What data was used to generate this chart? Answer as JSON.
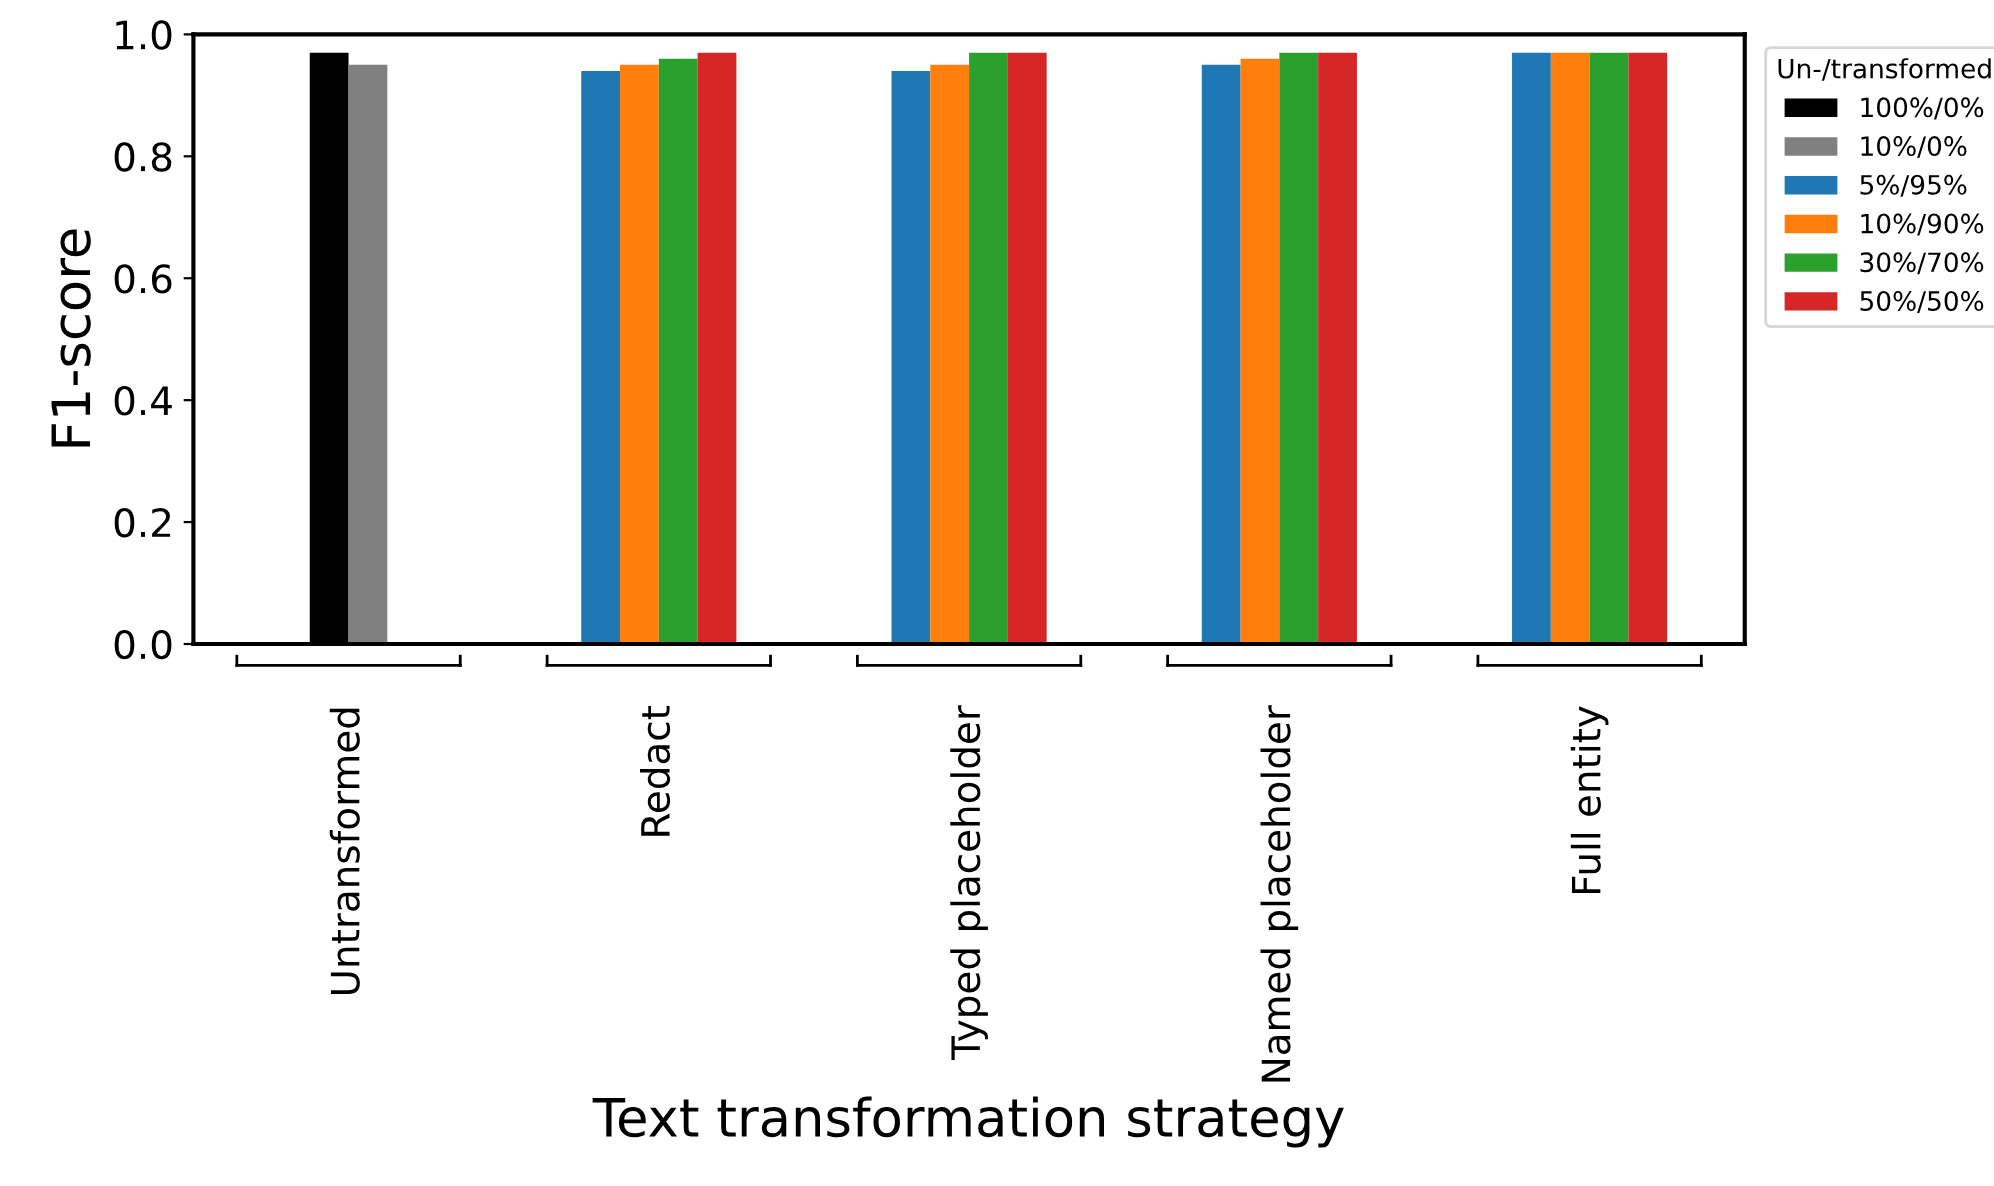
{
  "chart_data": {
    "type": "bar",
    "xlabel": "Text transformation strategy",
    "ylabel": "F1-score",
    "legend_title": "Un-/transformed",
    "categories": [
      "Untransformed",
      "Redact",
      "Typed placeholder",
      "Named placeholder",
      "Full entity"
    ],
    "series": [
      {
        "name": "100%/0%",
        "color": "#000000",
        "values": [
          0.97,
          null,
          null,
          null,
          null
        ]
      },
      {
        "name": "10%/0%",
        "color": "#808080",
        "values": [
          0.95,
          null,
          null,
          null,
          null
        ]
      },
      {
        "name": "5%/95%",
        "color": "#1f77b4",
        "values": [
          null,
          0.94,
          0.94,
          0.95,
          0.97
        ]
      },
      {
        "name": "10%/90%",
        "color": "#ff7f0e",
        "values": [
          null,
          0.95,
          0.95,
          0.96,
          0.97
        ]
      },
      {
        "name": "30%/70%",
        "color": "#2ca02c",
        "values": [
          null,
          0.96,
          0.97,
          0.97,
          0.97
        ]
      },
      {
        "name": "50%/50%",
        "color": "#d62728",
        "values": [
          null,
          0.97,
          0.97,
          0.97,
          0.97
        ]
      }
    ],
    "ylim": [
      0,
      1.0
    ],
    "yticks": [
      {
        "value": 0,
        "label": "0.0"
      },
      {
        "value": 0.2,
        "label": "0.2"
      },
      {
        "value": 0.4,
        "label": "0.4"
      },
      {
        "value": 0.6,
        "label": "0.6"
      },
      {
        "value": 0.8,
        "label": "0.8"
      },
      {
        "value": 1.0,
        "label": "1.0"
      }
    ],
    "grid": false,
    "legend": "top right"
  }
}
